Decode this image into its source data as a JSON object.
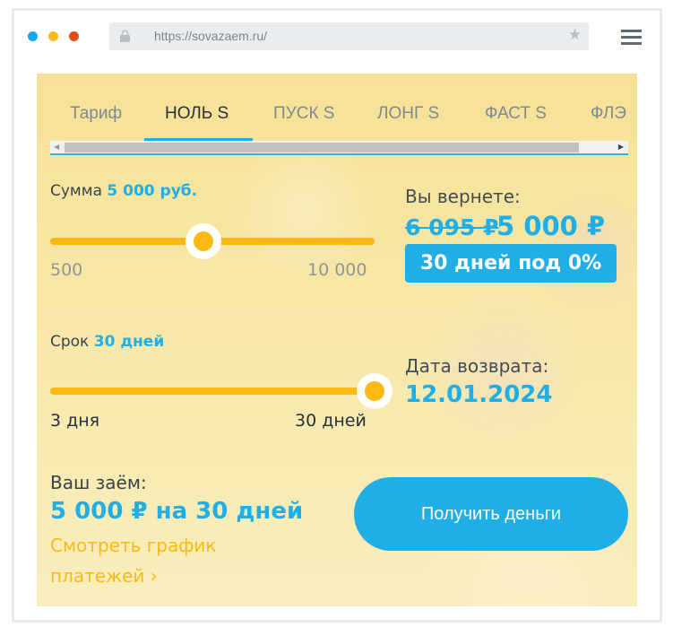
{
  "browser": {
    "url": "https://sovazaem.ru/",
    "dots": [
      "#16a9f0",
      "#fdb913",
      "#e64a19"
    ]
  },
  "tabs": [
    {
      "label": "Тариф"
    },
    {
      "label": "НОЛЬ S"
    },
    {
      "label": "ПУСК S"
    },
    {
      "label": "ЛОНГ S"
    },
    {
      "label": "ФАСТ S"
    },
    {
      "label": "ФЛЭ"
    }
  ],
  "active_tab": "НОЛЬ S",
  "amount": {
    "label": "Сумма",
    "value_text": "5 000 руб.",
    "min_label": "500",
    "max_label": "10 000",
    "min": 500,
    "max": 10000,
    "value": 5000
  },
  "term": {
    "label": "Срок",
    "value_text": "30 дней",
    "min_label": "3 дня",
    "max_label": "30 дней",
    "min": 3,
    "max": 30,
    "value": 30
  },
  "repay": {
    "label": "Вы вернете:",
    "old_price": "6 095 ₽",
    "new_price": "5 000 ₽",
    "badge": "30 дней под 0%"
  },
  "return_date": {
    "label": "Дата возврата:",
    "value": "12.01.2024"
  },
  "loan": {
    "label": "Ваш заём:",
    "summary": "5 000 ₽ на 30 дней",
    "schedule_link_line1": "Смотреть график",
    "schedule_link_line2": "платежей ›"
  },
  "cta": {
    "label": "Получить деньги"
  },
  "colors": {
    "accent": "#1faee6",
    "slider": "#fdb913",
    "background": "#f7e29a"
  }
}
